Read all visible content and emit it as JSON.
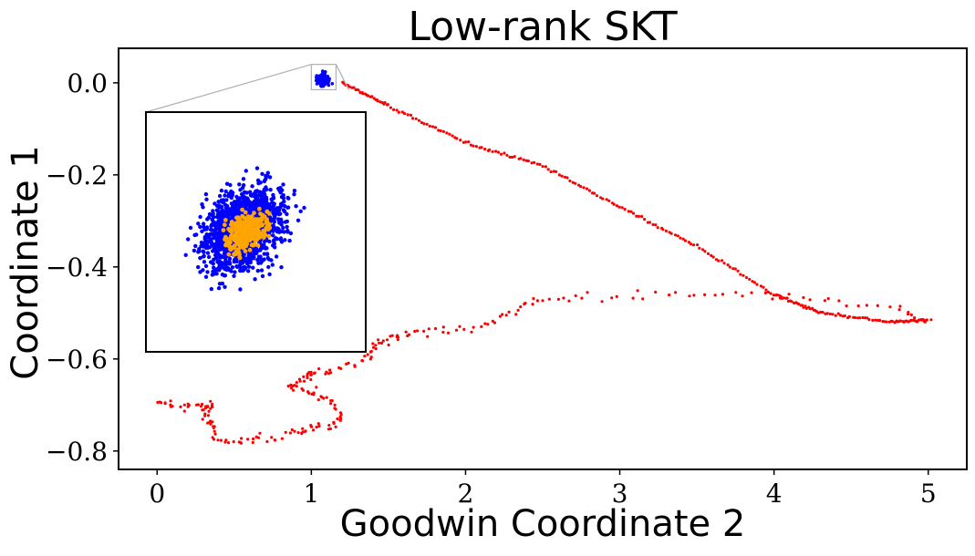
{
  "chart_data": {
    "type": "scatter",
    "title": "Low-rank SKT",
    "xlabel": "Goodwin Coordinate 2",
    "ylabel": "Coordinate 1",
    "xlim": [
      -0.25,
      5.25
    ],
    "ylim": [
      -0.84,
      0.075
    ],
    "xticks": [
      0,
      1,
      2,
      3,
      4,
      5
    ],
    "xtick_labels": [
      "0",
      "1",
      "2",
      "3",
      "4",
      "5"
    ],
    "yticks": [
      0.0,
      -0.2,
      -0.4,
      -0.6,
      -0.8
    ],
    "ytick_labels": [
      "0.0",
      "−0.2",
      "−0.4",
      "−0.6",
      "−0.8"
    ],
    "grid": false,
    "legend": "none",
    "series": [
      {
        "color": "#ff0000",
        "path": [
          [
            1.2,
            0.0
          ],
          [
            1.5,
            -0.05
          ],
          [
            2.0,
            -0.13
          ],
          [
            2.5,
            -0.18
          ],
          [
            3.0,
            -0.27
          ],
          [
            3.5,
            -0.355
          ],
          [
            4.0,
            -0.46
          ],
          [
            4.3,
            -0.5
          ],
          [
            4.75,
            -0.52
          ],
          [
            5.0,
            -0.515
          ],
          [
            4.8,
            -0.49
          ],
          [
            4.3,
            -0.47
          ],
          [
            3.8,
            -0.458
          ],
          [
            3.3,
            -0.46
          ],
          [
            2.8,
            -0.465
          ],
          [
            2.45,
            -0.47
          ],
          [
            2.3,
            -0.5
          ],
          [
            2.1,
            -0.53
          ],
          [
            1.85,
            -0.54
          ],
          [
            1.6,
            -0.545
          ],
          [
            1.5,
            -0.555
          ],
          [
            1.4,
            -0.575
          ],
          [
            1.35,
            -0.6
          ],
          [
            1.15,
            -0.625
          ],
          [
            1.0,
            -0.63
          ],
          [
            0.95,
            -0.64
          ],
          [
            0.85,
            -0.66
          ],
          [
            1.0,
            -0.67
          ],
          [
            1.1,
            -0.69
          ],
          [
            1.2,
            -0.72
          ],
          [
            1.15,
            -0.745
          ],
          [
            1.0,
            -0.75
          ],
          [
            0.9,
            -0.76
          ],
          [
            0.7,
            -0.77
          ],
          [
            0.55,
            -0.78
          ],
          [
            0.4,
            -0.775
          ],
          [
            0.35,
            -0.74
          ],
          [
            0.3,
            -0.72
          ],
          [
            0.35,
            -0.7
          ],
          [
            0.25,
            -0.7
          ],
          [
            0.1,
            -0.7
          ],
          [
            0.0,
            -0.69
          ]
        ]
      },
      {
        "color": "#0000ff",
        "cluster": {
          "center": [
            1.08,
            0.007
          ],
          "spread": [
            0.05,
            0.018
          ]
        }
      }
    ],
    "inset": {
      "source_box": {
        "x": [
          1.0,
          1.16
        ],
        "y": [
          -0.015,
          0.04
        ]
      },
      "series": [
        {
          "color": "#0000ff",
          "description": "dense blue point cloud"
        },
        {
          "color": "#ffa500",
          "description": "orange points at cloud center"
        }
      ]
    }
  }
}
